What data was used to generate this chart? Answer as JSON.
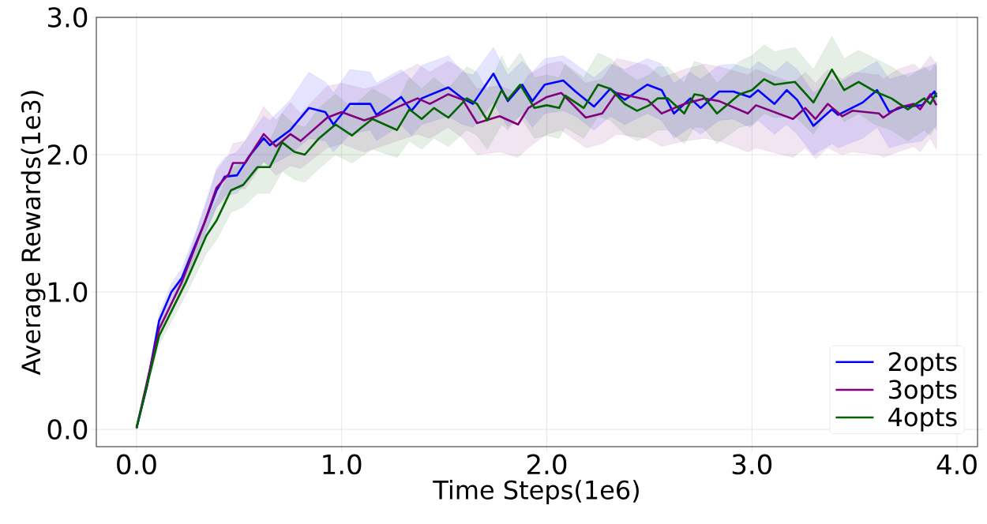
{
  "chart_data": {
    "type": "line",
    "xlabel": "Time Steps(1e6)",
    "ylabel": "Average Rewards(1e3)",
    "xlim": [
      -0.196,
      4.1
    ],
    "ylim": [
      -0.126,
      3.0
    ],
    "xticks": [
      {
        "value": 0,
        "label": "0.0"
      },
      {
        "value": 1,
        "label": "1.0"
      },
      {
        "value": 2,
        "label": "2.0"
      },
      {
        "value": 3,
        "label": "3.0"
      },
      {
        "value": 4,
        "label": "4.0"
      }
    ],
    "yticks": [
      {
        "value": 0,
        "label": "0.0"
      },
      {
        "value": 1,
        "label": "1.0"
      },
      {
        "value": 2,
        "label": "2.0"
      },
      {
        "value": 3,
        "label": "3.0"
      }
    ],
    "grid": true,
    "legend": "bottom right",
    "line_style": "solid",
    "series": [
      {
        "name": "2opts",
        "color": "#0000ff",
        "x": [
          0,
          0.05,
          0.11,
          0.17,
          0.22,
          0.28,
          0.33,
          0.39,
          0.43,
          0.49,
          0.55,
          0.62,
          0.65,
          0.75,
          0.84,
          0.92,
          0.96,
          1.04,
          1.14,
          1.17,
          1.29,
          1.34,
          1.39,
          1.52,
          1.59,
          1.64,
          1.74,
          1.81,
          1.88,
          1.93,
          1.99,
          2.08,
          2.14,
          2.23,
          2.31,
          2.38,
          2.49,
          2.56,
          2.62,
          2.7,
          2.75,
          2.84,
          2.91,
          2.99,
          3.03,
          3.11,
          3.17,
          3.22,
          3.3,
          3.39,
          3.42,
          3.54,
          3.61,
          3.67,
          3.74,
          3.83,
          3.89,
          3.9
        ],
        "values": [
          0.01,
          0.31,
          0.79,
          1.0,
          1.1,
          1.32,
          1.5,
          1.74,
          1.84,
          1.85,
          1.99,
          2.12,
          2.07,
          2.18,
          2.34,
          2.31,
          2.22,
          2.37,
          2.37,
          2.29,
          2.42,
          2.32,
          2.41,
          2.49,
          2.41,
          2.37,
          2.59,
          2.39,
          2.51,
          2.39,
          2.51,
          2.54,
          2.46,
          2.35,
          2.48,
          2.4,
          2.51,
          2.47,
          2.3,
          2.41,
          2.34,
          2.46,
          2.46,
          2.42,
          2.47,
          2.37,
          2.47,
          2.4,
          2.21,
          2.33,
          2.29,
          2.38,
          2.47,
          2.31,
          2.35,
          2.36,
          2.46,
          2.42
        ],
        "lower": [
          0.0,
          0.28,
          0.74,
          0.95,
          1.04,
          1.24,
          1.4,
          1.62,
          1.7,
          1.72,
          1.82,
          1.95,
          1.92,
          2.0,
          2.12,
          2.1,
          2.02,
          2.15,
          2.18,
          2.1,
          2.22,
          2.14,
          2.22,
          2.28,
          2.22,
          2.2,
          2.38,
          2.2,
          2.3,
          2.2,
          2.3,
          2.32,
          2.28,
          2.18,
          2.28,
          2.22,
          2.3,
          2.25,
          2.12,
          2.2,
          2.15,
          2.25,
          2.26,
          2.2,
          2.25,
          2.15,
          2.22,
          2.15,
          2.0,
          2.08,
          2.05,
          2.12,
          2.2,
          2.05,
          2.08,
          2.1,
          2.2,
          2.18
        ],
        "upper": [
          0.03,
          0.34,
          0.84,
          1.06,
          1.17,
          1.4,
          1.62,
          1.9,
          1.98,
          2.02,
          2.14,
          2.28,
          2.25,
          2.4,
          2.6,
          2.53,
          2.45,
          2.62,
          2.6,
          2.52,
          2.62,
          2.55,
          2.65,
          2.72,
          2.6,
          2.58,
          2.78,
          2.58,
          2.68,
          2.6,
          2.7,
          2.72,
          2.66,
          2.56,
          2.66,
          2.62,
          2.7,
          2.66,
          2.52,
          2.6,
          2.55,
          2.65,
          2.66,
          2.62,
          2.68,
          2.6,
          2.68,
          2.62,
          2.45,
          2.55,
          2.52,
          2.62,
          2.68,
          2.55,
          2.58,
          2.62,
          2.66,
          2.64
        ]
      },
      {
        "name": "3opts",
        "color": "#800080",
        "x": [
          0,
          0.11,
          0.22,
          0.33,
          0.39,
          0.45,
          0.47,
          0.53,
          0.62,
          0.68,
          0.75,
          0.8,
          0.93,
          1.0,
          1.11,
          1.17,
          1.37,
          1.43,
          1.52,
          1.59,
          1.66,
          1.77,
          1.86,
          1.91,
          2.0,
          2.07,
          2.19,
          2.27,
          2.34,
          2.49,
          2.56,
          2.67,
          2.77,
          2.84,
          2.98,
          3.02,
          3.2,
          3.26,
          3.31,
          3.37,
          3.44,
          3.49,
          3.62,
          3.64,
          3.71,
          3.79,
          3.82,
          3.87,
          3.9
        ],
        "values": [
          0.01,
          0.73,
          1.07,
          1.5,
          1.76,
          1.86,
          1.94,
          1.94,
          2.15,
          2.06,
          2.15,
          2.1,
          2.27,
          2.31,
          2.25,
          2.28,
          2.41,
          2.37,
          2.44,
          2.4,
          2.23,
          2.28,
          2.22,
          2.34,
          2.42,
          2.45,
          2.27,
          2.3,
          2.45,
          2.4,
          2.3,
          2.37,
          2.41,
          2.39,
          2.3,
          2.36,
          2.26,
          2.34,
          2.26,
          2.37,
          2.28,
          2.32,
          2.3,
          2.27,
          2.34,
          2.37,
          2.33,
          2.44,
          2.36
        ],
        "lower": [
          0.0,
          0.7,
          1.02,
          1.42,
          1.62,
          1.7,
          1.76,
          1.75,
          1.95,
          1.85,
          1.92,
          1.9,
          2.05,
          2.08,
          2.02,
          2.05,
          2.15,
          2.12,
          2.2,
          2.12,
          2.0,
          2.02,
          1.98,
          2.05,
          2.15,
          2.18,
          2.05,
          2.08,
          2.15,
          2.12,
          2.06,
          2.1,
          2.12,
          2.1,
          2.02,
          2.05,
          1.98,
          2.05,
          1.97,
          2.05,
          2.0,
          2.02,
          2.0,
          1.98,
          2.02,
          2.06,
          2.02,
          2.12,
          2.04
        ],
        "upper": [
          0.03,
          0.78,
          1.12,
          1.6,
          1.88,
          2.0,
          2.08,
          2.1,
          2.35,
          2.25,
          2.38,
          2.3,
          2.5,
          2.52,
          2.48,
          2.5,
          2.66,
          2.6,
          2.68,
          2.62,
          2.48,
          2.5,
          2.45,
          2.58,
          2.66,
          2.68,
          2.52,
          2.55,
          2.7,
          2.65,
          2.56,
          2.62,
          2.66,
          2.64,
          2.58,
          2.62,
          2.52,
          2.6,
          2.52,
          2.62,
          2.55,
          2.6,
          2.58,
          2.55,
          2.62,
          2.66,
          2.62,
          2.72,
          2.66
        ]
      },
      {
        "name": "4opts",
        "color": "#006400",
        "x": [
          0,
          0.11,
          0.24,
          0.34,
          0.39,
          0.46,
          0.52,
          0.59,
          0.65,
          0.71,
          0.77,
          0.82,
          0.89,
          0.97,
          1.05,
          1.09,
          1.15,
          1.27,
          1.33,
          1.39,
          1.45,
          1.52,
          1.61,
          1.66,
          1.71,
          1.78,
          1.81,
          1.87,
          1.94,
          2.0,
          2.06,
          2.09,
          2.18,
          2.25,
          2.31,
          2.38,
          2.44,
          2.5,
          2.54,
          2.59,
          2.67,
          2.72,
          2.76,
          2.83,
          2.94,
          3.0,
          3.06,
          3.11,
          3.21,
          3.3,
          3.39,
          3.45,
          3.52,
          3.6,
          3.68,
          3.76,
          3.84,
          3.87,
          3.9
        ],
        "values": [
          0.01,
          0.68,
          1.07,
          1.41,
          1.52,
          1.74,
          1.78,
          1.91,
          1.91,
          2.09,
          2.02,
          2.0,
          2.12,
          2.22,
          2.14,
          2.19,
          2.26,
          2.18,
          2.33,
          2.26,
          2.34,
          2.27,
          2.41,
          2.37,
          2.25,
          2.47,
          2.4,
          2.51,
          2.34,
          2.36,
          2.34,
          2.43,
          2.34,
          2.51,
          2.48,
          2.37,
          2.32,
          2.36,
          2.41,
          2.41,
          2.3,
          2.44,
          2.43,
          2.3,
          2.44,
          2.47,
          2.55,
          2.51,
          2.53,
          2.38,
          2.62,
          2.47,
          2.53,
          2.46,
          2.41,
          2.33,
          2.41,
          2.37,
          2.45
        ],
        "lower": [
          0.0,
          0.62,
          0.98,
          1.28,
          1.38,
          1.58,
          1.62,
          1.72,
          1.72,
          1.88,
          1.82,
          1.8,
          1.9,
          2.0,
          1.94,
          1.98,
          2.04,
          1.98,
          2.1,
          2.04,
          2.12,
          2.06,
          2.18,
          2.14,
          2.04,
          2.22,
          2.18,
          2.28,
          2.12,
          2.14,
          2.12,
          2.2,
          2.12,
          2.28,
          2.25,
          2.15,
          2.1,
          2.14,
          2.18,
          2.18,
          2.08,
          2.2,
          2.2,
          2.08,
          2.2,
          2.22,
          2.3,
          2.27,
          2.28,
          2.15,
          2.38,
          2.24,
          2.3,
          2.22,
          2.18,
          2.1,
          2.18,
          2.14,
          2.22
        ],
        "upper": [
          0.03,
          0.74,
          1.16,
          1.54,
          1.66,
          1.9,
          1.94,
          2.1,
          2.1,
          2.3,
          2.22,
          2.2,
          2.34,
          2.44,
          2.34,
          2.4,
          2.48,
          2.38,
          2.56,
          2.48,
          2.56,
          2.48,
          2.64,
          2.6,
          2.46,
          2.72,
          2.62,
          2.74,
          2.56,
          2.58,
          2.56,
          2.66,
          2.56,
          2.74,
          2.7,
          2.6,
          2.54,
          2.58,
          2.64,
          2.64,
          2.52,
          2.68,
          2.66,
          2.52,
          2.68,
          2.72,
          2.8,
          2.75,
          2.78,
          2.62,
          2.86,
          2.7,
          2.76,
          2.7,
          2.64,
          2.56,
          2.64,
          2.6,
          2.68
        ]
      }
    ]
  }
}
